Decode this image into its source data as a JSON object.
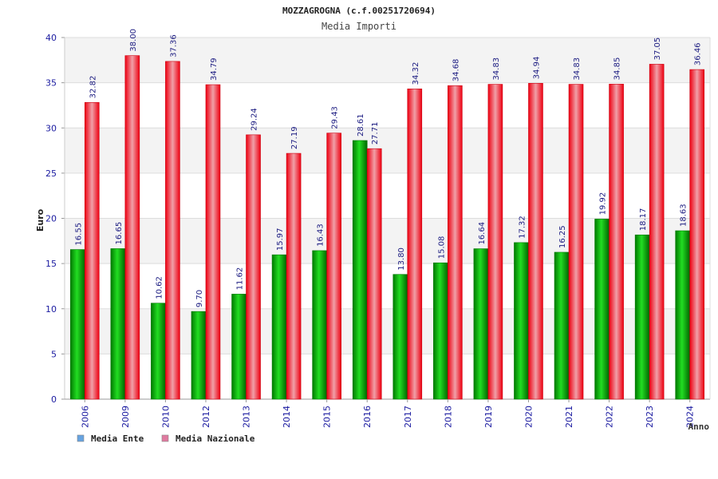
{
  "chart_data": {
    "type": "bar",
    "title": "MOZZAGROGNA (c.f.00251720694)",
    "subtitle": "Media Importi",
    "xlabel": "Anno",
    "ylabel": "Euro",
    "ylim": [
      0,
      40
    ],
    "yticks": [
      "0",
      "5",
      "10",
      "15",
      "20",
      "25",
      "30",
      "35",
      "40"
    ],
    "grid": true,
    "legend_position": "bottom-left",
    "categories": [
      "2006",
      "2009",
      "2010",
      "2012",
      "2013",
      "2014",
      "2015",
      "2016",
      "2017",
      "2018",
      "2019",
      "2020",
      "2021",
      "2022",
      "2023",
      "2024"
    ],
    "series": [
      {
        "name": "Media Ente",
        "color": "#00bb00",
        "legend_color": "#66a3e0",
        "values": [
          16.55,
          16.65,
          10.62,
          9.7,
          11.62,
          15.97,
          16.43,
          28.61,
          13.8,
          15.08,
          16.64,
          17.32,
          16.25,
          19.92,
          18.17,
          18.63
        ],
        "labels": [
          "16.55",
          "16.65",
          "10.62",
          "9.70",
          "11.62",
          "15.97",
          "16.43",
          "28.61",
          "13.80",
          "15.08",
          "16.64",
          "17.32",
          "16.25",
          "19.92",
          "18.17",
          "18.63"
        ]
      },
      {
        "name": "Media Nazionale",
        "color": "#ee0011",
        "legend_color": "#e07aa0",
        "values": [
          32.82,
          38.0,
          37.36,
          34.79,
          29.24,
          27.19,
          29.43,
          27.71,
          34.32,
          34.68,
          34.83,
          34.94,
          34.83,
          34.85,
          37.05,
          36.46
        ],
        "labels": [
          "32.82",
          "38.00",
          "37.36",
          "34.79",
          "29.24",
          "27.19",
          "29.43",
          "27.71",
          "34.32",
          "34.68",
          "34.83",
          "34.94",
          "34.83",
          "34.85",
          "37.05",
          "36.46"
        ]
      }
    ]
  }
}
